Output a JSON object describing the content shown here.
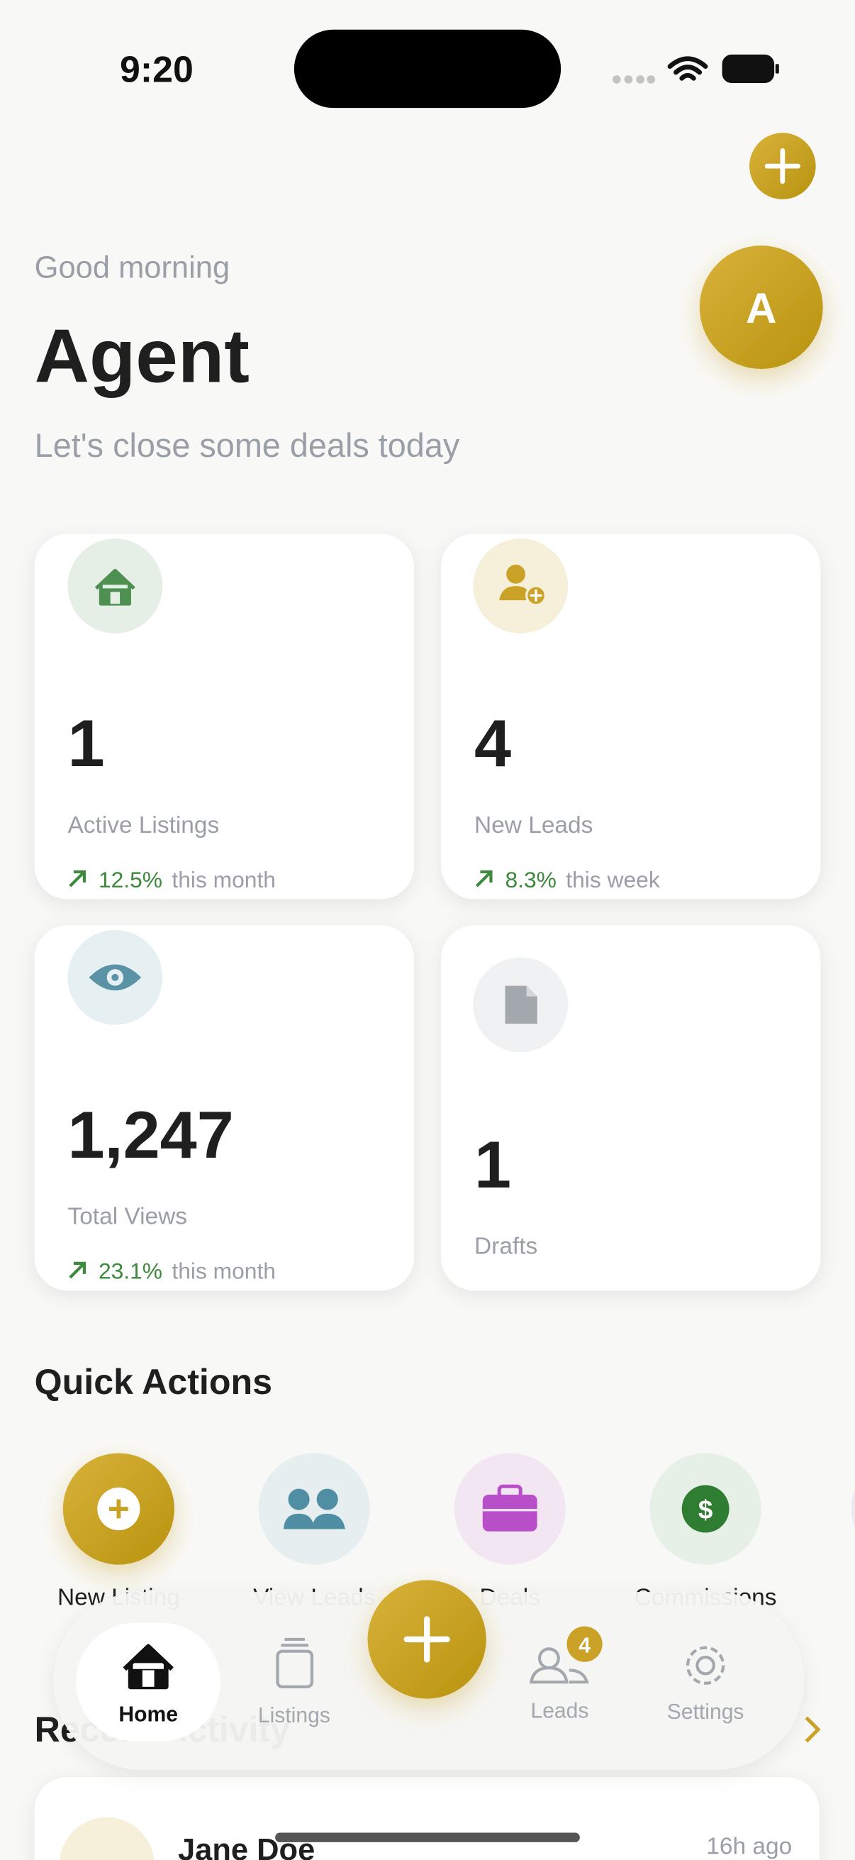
{
  "status_bar": {
    "time": "9:20"
  },
  "header": {
    "greeting": "Good morning",
    "name": "Agent",
    "subtitle": "Let's close some deals today",
    "avatar": "A"
  },
  "stats": [
    {
      "value": "1",
      "label": "Active Listings",
      "trend": "12.5%",
      "period": "this month"
    },
    {
      "value": "4",
      "label": "New Leads",
      "trend": "8.3%",
      "period": "this week"
    },
    {
      "value": "1,247",
      "label": "Total Views",
      "trend": "23.1%",
      "period": "this month"
    },
    {
      "value": "1",
      "label": "Drafts"
    }
  ],
  "quick_actions": {
    "title": "Quick Actions",
    "items": [
      "New Listing",
      "View Leads",
      "Deals",
      "Commissions"
    ]
  },
  "recent": {
    "title": "Recent Activity",
    "items": [
      {
        "name": "Jane Doe",
        "time": "16h ago"
      }
    ]
  },
  "nav": {
    "items": [
      "Home",
      "Listings",
      "Leads",
      "Settings"
    ],
    "leads_badge": "4"
  }
}
